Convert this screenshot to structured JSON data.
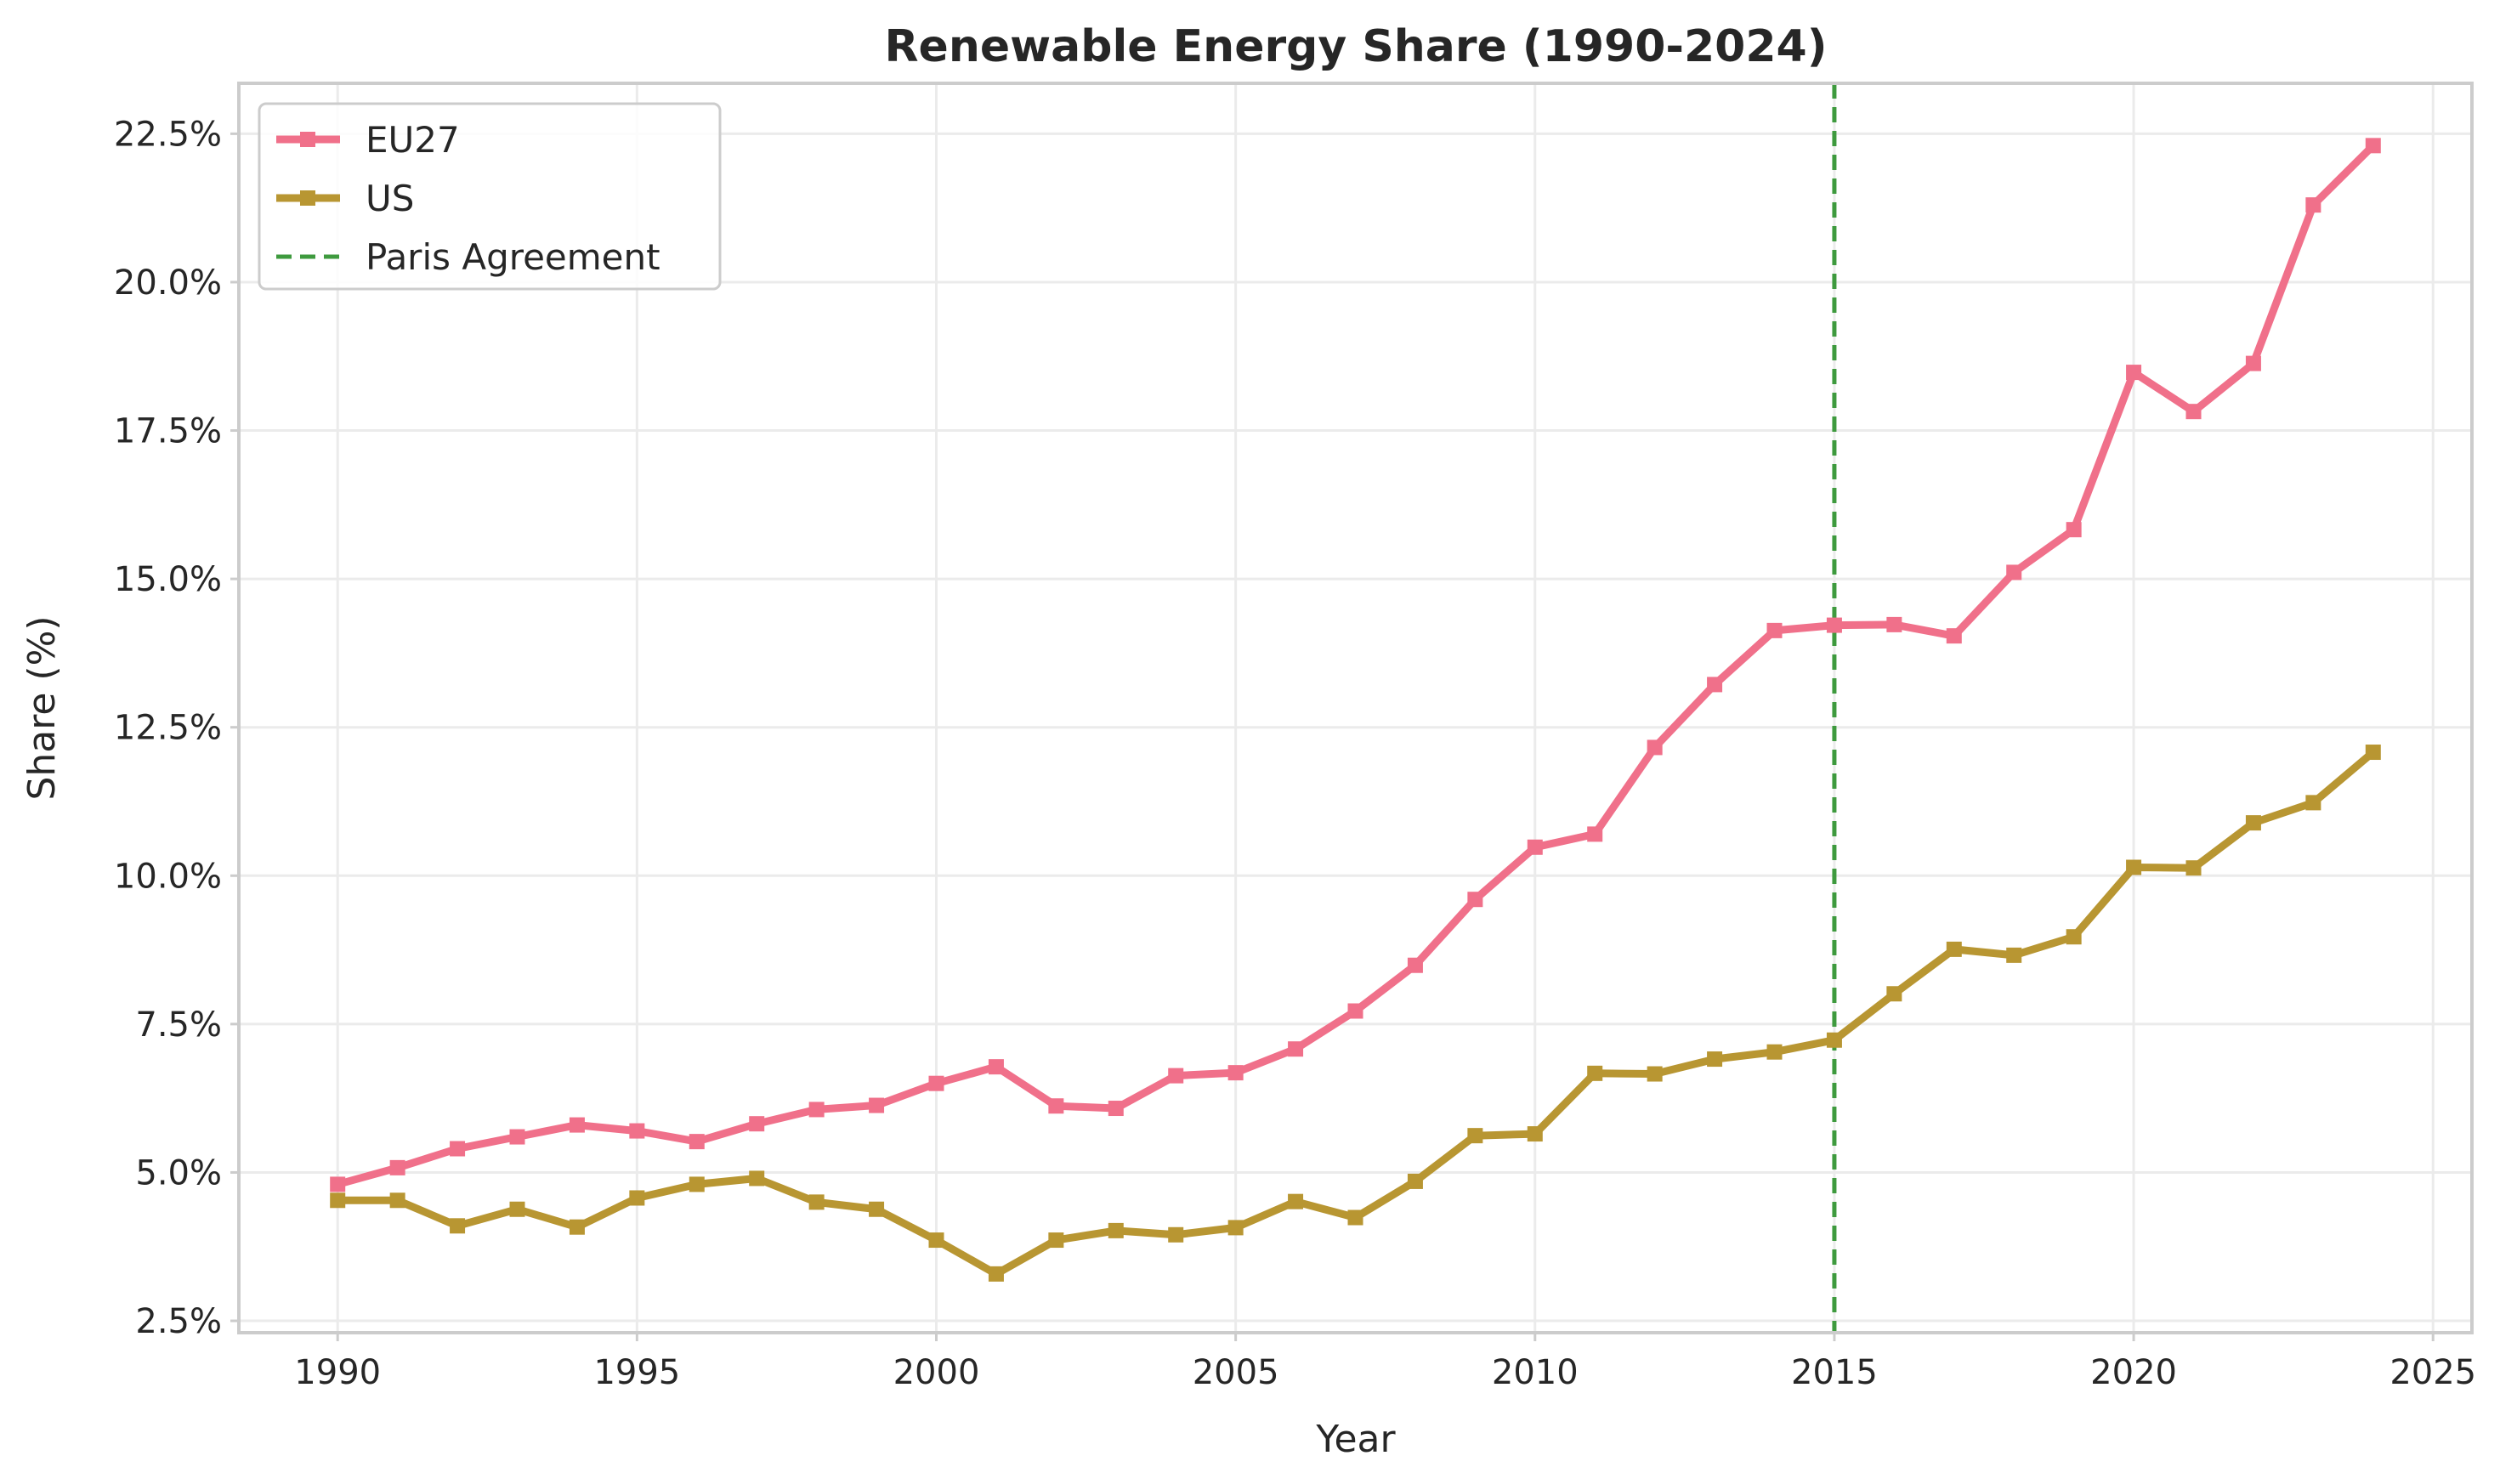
{
  "chart_data": {
    "type": "line",
    "title": "Renewable Energy Share (1990-2024)",
    "xlabel": "Year",
    "ylabel": "Share (%)",
    "xlim": [
      1988.35,
      2025.65
    ],
    "ylim": [
      2.3,
      23.35
    ],
    "xticks": [
      1990,
      1995,
      2000,
      2005,
      2010,
      2015,
      2020,
      2025
    ],
    "yticks": [
      2.5,
      5.0,
      7.5,
      10.0,
      12.5,
      15.0,
      17.5,
      20.0,
      22.5
    ],
    "ytick_labels": [
      "2.5%",
      "5.0%",
      "7.5%",
      "10.0%",
      "12.5%",
      "15.0%",
      "17.5%",
      "20.0%",
      "22.5%"
    ],
    "xtick_labels": [
      "1990",
      "1995",
      "2000",
      "2005",
      "2010",
      "2015",
      "2020",
      "2025"
    ],
    "grid": true,
    "legend_position": "upper-left",
    "x": [
      1990,
      1991,
      1992,
      1993,
      1994,
      1995,
      1996,
      1997,
      1998,
      1999,
      2000,
      2001,
      2002,
      2003,
      2004,
      2005,
      2006,
      2007,
      2008,
      2009,
      2010,
      2011,
      2012,
      2013,
      2014,
      2015,
      2016,
      2017,
      2018,
      2019,
      2020,
      2021,
      2022,
      2023,
      2024
    ],
    "series": [
      {
        "name": "EU27",
        "color": "#f0708a",
        "marker": "square",
        "values": [
          4.8,
          5.08,
          5.4,
          5.6,
          5.8,
          5.7,
          5.52,
          5.82,
          6.06,
          6.13,
          6.5,
          6.78,
          6.12,
          6.08,
          6.63,
          6.68,
          7.08,
          7.72,
          8.49,
          9.6,
          10.48,
          10.7,
          12.16,
          13.22,
          14.13,
          14.22,
          14.23,
          14.04,
          15.11,
          15.83,
          18.48,
          17.82,
          18.63,
          21.3,
          22.3
        ]
      },
      {
        "name": "US",
        "color": "#b89632",
        "marker": "square",
        "values": [
          4.53,
          4.53,
          4.1,
          4.38,
          4.08,
          4.57,
          4.8,
          4.9,
          4.5,
          4.38,
          3.86,
          3.29,
          3.86,
          4.02,
          3.95,
          4.07,
          4.51,
          4.24,
          4.85,
          5.62,
          5.65,
          6.67,
          6.66,
          6.91,
          7.03,
          7.23,
          8.01,
          8.76,
          8.66,
          8.97,
          10.14,
          10.13,
          10.89,
          11.23,
          12.08
        ]
      }
    ],
    "vlines": [
      {
        "name": "Paris Agreement",
        "x": 2015,
        "color": "#3e9a3e",
        "style": "dashed"
      }
    ]
  }
}
